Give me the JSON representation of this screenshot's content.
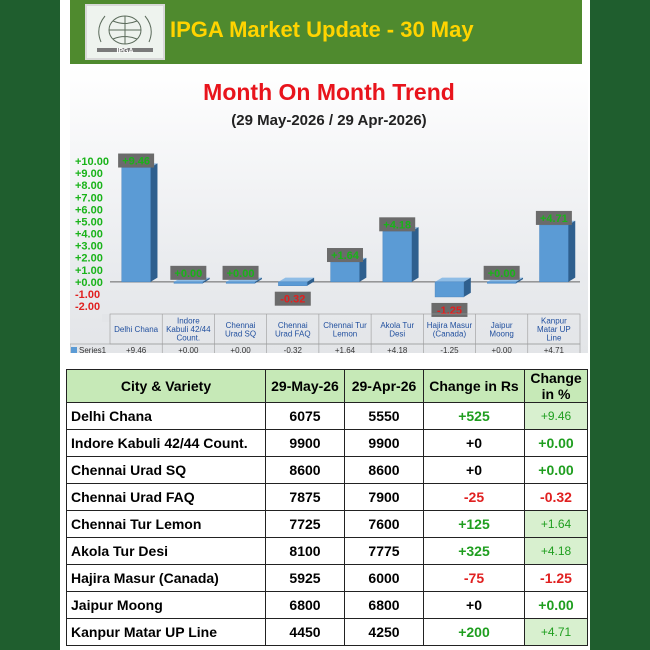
{
  "header": {
    "title": "IPGA Market Update - 30 May",
    "logo_text": "IPGA"
  },
  "chart_data": {
    "type": "bar",
    "title": "Month On Month Trend",
    "subtitle": "(29 May-2026 / 29 Apr-2026)",
    "categories": [
      "Delhi Chana",
      "Indore Kabuli 42/44 Count.",
      "Chennai Urad SQ",
      "Chennai Urad FAQ",
      "Chennai Tur Lemon",
      "Akola Tur Desi",
      "Hajira Masur (Canada)",
      "Jaipur Moong",
      "Kanpur Matar UP Line"
    ],
    "category_lines": [
      [
        "Delhi Chana"
      ],
      [
        "Indore",
        "Kabuli 42/44",
        "Count."
      ],
      [
        "Chennai",
        "Urad SQ"
      ],
      [
        "Chennai",
        "Urad FAQ"
      ],
      [
        "Chennai Tur",
        "Lemon"
      ],
      [
        "Akola Tur",
        "Desi"
      ],
      [
        "Hajira Masur",
        "(Canada)"
      ],
      [
        "Jaipur",
        "Moong"
      ],
      [
        "Kanpur",
        "Matar UP",
        "Line"
      ]
    ],
    "series": [
      {
        "name": "Series1",
        "values": [
          9.46,
          0.0,
          0.0,
          -0.32,
          1.64,
          4.18,
          -1.25,
          0.0,
          4.71
        ]
      }
    ],
    "data_labels": [
      "+9.46",
      "+0.00",
      "+0.00",
      "-0.32",
      "+1.64",
      "+4.18",
      "-1.25",
      "+0.00",
      "+4.71"
    ],
    "yticks": [
      "+10.00",
      "+9.00",
      "+8.00",
      "+7.00",
      "+6.00",
      "+5.00",
      "+4.00",
      "+3.00",
      "+2.00",
      "+1.00",
      "+0.00",
      "-1.00",
      "-2.00"
    ],
    "ylim": [
      -2,
      10
    ],
    "legend_label": "Series1",
    "colors": {
      "bar": "#5b9bd5",
      "bar_dark": "#2e5f8e",
      "pos_label": "#19b319",
      "neg_label": "#e02020",
      "title": "#e8141c"
    }
  },
  "table": {
    "headers": [
      "City & Variety",
      "29-May-26",
      "29-Apr-26",
      "Change in Rs",
      "Change in %"
    ],
    "rows": [
      {
        "name": "Delhi Chana",
        "may": "6075",
        "apr": "5550",
        "chg": "+525",
        "pct": "+9.46"
      },
      {
        "name": "Indore Kabuli 42/44 Count.",
        "may": "9900",
        "apr": "9900",
        "chg": "+0",
        "pct": "+0.00"
      },
      {
        "name": "Chennai Urad SQ",
        "may": "8600",
        "apr": "8600",
        "chg": "+0",
        "pct": "+0.00"
      },
      {
        "name": "Chennai Urad FAQ",
        "may": "7875",
        "apr": "7900",
        "chg": "-25",
        "pct": "-0.32"
      },
      {
        "name": "Chennai Tur Lemon",
        "may": "7725",
        "apr": "7600",
        "chg": "+125",
        "pct": "+1.64"
      },
      {
        "name": "Akola Tur Desi",
        "may": "8100",
        "apr": "7775",
        "chg": "+325",
        "pct": "+4.18"
      },
      {
        "name": "Hajira Masur (Canada)",
        "may": "5925",
        "apr": "6000",
        "chg": "-75",
        "pct": "-1.25"
      },
      {
        "name": "Jaipur Moong",
        "may": "6800",
        "apr": "6800",
        "chg": "+0",
        "pct": "+0.00"
      },
      {
        "name": "Kanpur Matar UP Line",
        "may": "4450",
        "apr": "4250",
        "chg": "+200",
        "pct": "+4.71"
      }
    ]
  }
}
